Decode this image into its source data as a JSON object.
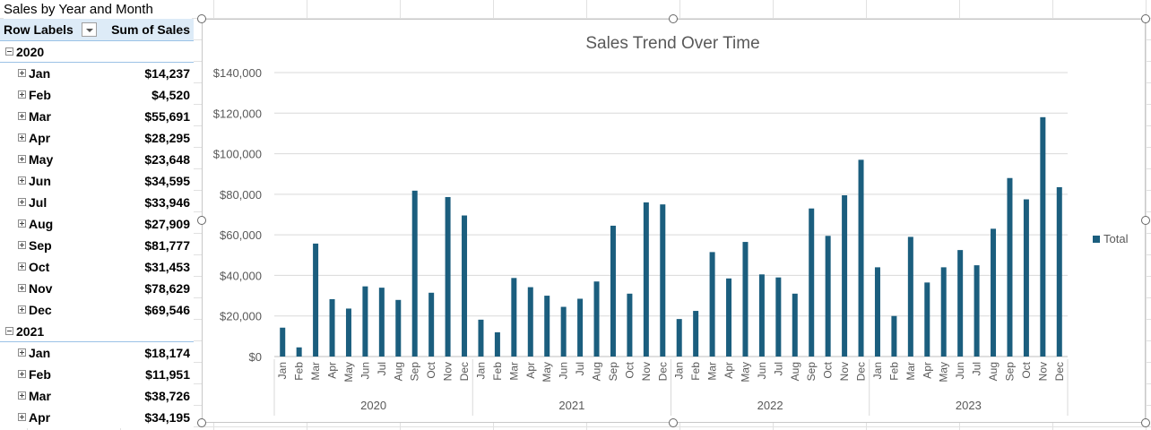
{
  "sheet": {
    "title": "Sales by Year and Month"
  },
  "pivot": {
    "header": {
      "row_labels": "Row Labels",
      "sum": "Sum of Sales"
    },
    "rows": [
      {
        "type": "year",
        "label": "2020",
        "expander": "collapse"
      },
      {
        "type": "month",
        "label": "Jan",
        "value": "$14,237"
      },
      {
        "type": "month",
        "label": "Feb",
        "value": "$4,520"
      },
      {
        "type": "month",
        "label": "Mar",
        "value": "$55,691"
      },
      {
        "type": "month",
        "label": "Apr",
        "value": "$28,295"
      },
      {
        "type": "month",
        "label": "May",
        "value": "$23,648"
      },
      {
        "type": "month",
        "label": "Jun",
        "value": "$34,595"
      },
      {
        "type": "month",
        "label": "Jul",
        "value": "$33,946"
      },
      {
        "type": "month",
        "label": "Aug",
        "value": "$27,909"
      },
      {
        "type": "month",
        "label": "Sep",
        "value": "$81,777"
      },
      {
        "type": "month",
        "label": "Oct",
        "value": "$31,453"
      },
      {
        "type": "month",
        "label": "Nov",
        "value": "$78,629"
      },
      {
        "type": "month",
        "label": "Dec",
        "value": "$69,546"
      },
      {
        "type": "year",
        "label": "2021",
        "expander": "collapse"
      },
      {
        "type": "month",
        "label": "Jan",
        "value": "$18,174"
      },
      {
        "type": "month",
        "label": "Feb",
        "value": "$11,951"
      },
      {
        "type": "month",
        "label": "Mar",
        "value": "$38,726"
      },
      {
        "type": "month",
        "label": "Apr",
        "value": "$34,195"
      }
    ]
  },
  "chart_data": {
    "type": "bar",
    "title": "Sales Trend Over Time",
    "groups": [
      "2020",
      "2021",
      "2022",
      "2023"
    ],
    "categories": [
      "Jan",
      "Feb",
      "Mar",
      "Apr",
      "May",
      "Jun",
      "Jul",
      "Aug",
      "Sep",
      "Oct",
      "Nov",
      "Dec",
      "Jan",
      "Feb",
      "Mar",
      "Apr",
      "May",
      "Jun",
      "Jul",
      "Aug",
      "Sep",
      "Oct",
      "Nov",
      "Dec",
      "Jan",
      "Feb",
      "Mar",
      "Apr",
      "May",
      "Jun",
      "Jul",
      "Aug",
      "Sep",
      "Oct",
      "Nov",
      "Dec",
      "Jan",
      "Feb",
      "Mar",
      "Apr",
      "May",
      "Jun",
      "Jul",
      "Aug",
      "Sep",
      "Oct",
      "Nov",
      "Dec"
    ],
    "series": [
      {
        "name": "Total",
        "color": "#1b5e7e",
        "values": [
          14237,
          4520,
          55691,
          28295,
          23648,
          34595,
          33946,
          27909,
          81777,
          31453,
          78629,
          69546,
          18174,
          11951,
          38726,
          34195,
          30000,
          24500,
          28500,
          37000,
          64500,
          31000,
          76000,
          75000,
          18500,
          22500,
          51500,
          38500,
          56500,
          40500,
          39000,
          31000,
          73000,
          59500,
          79500,
          97000,
          44000,
          20000,
          59000,
          36500,
          44000,
          52500,
          45000,
          63000,
          88000,
          77500,
          118000,
          83500
        ]
      }
    ],
    "yticks": [
      "$0",
      "$20,000",
      "$40,000",
      "$60,000",
      "$80,000",
      "$100,000",
      "$120,000",
      "$140,000"
    ],
    "ylim": [
      0,
      140000
    ],
    "grid": true,
    "legend": "right"
  }
}
